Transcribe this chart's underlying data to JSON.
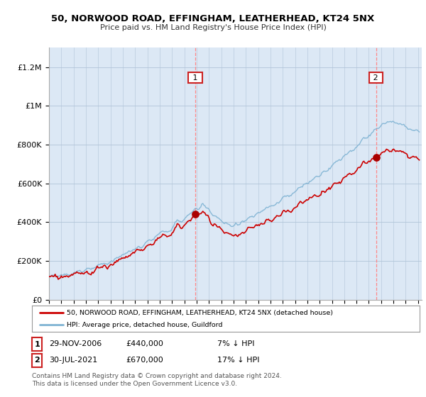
{
  "title1": "50, NORWOOD ROAD, EFFINGHAM, LEATHERHEAD, KT24 5NX",
  "title2": "Price paid vs. HM Land Registry's House Price Index (HPI)",
  "ylabel_ticks": [
    "£0",
    "£200K",
    "£400K",
    "£600K",
    "£800K",
    "£1M",
    "£1.2M"
  ],
  "ytick_values": [
    0,
    200000,
    400000,
    600000,
    800000,
    1000000,
    1200000
  ],
  "ylim": [
    0,
    1300000
  ],
  "sale1_price": 440000,
  "sale1_year": 2006.9,
  "sale1_date": "29-NOV-2006",
  "sale1_note": "7% ↓ HPI",
  "sale2_price": 670000,
  "sale2_year": 2021.58,
  "sale2_date": "30-JUL-2021",
  "sale2_note": "17% ↓ HPI",
  "legend_label_red": "50, NORWOOD ROAD, EFFINGHAM, LEATHERHEAD, KT24 5NX (detached house)",
  "legend_label_blue": "HPI: Average price, detached house, Guildford",
  "footer": "Contains HM Land Registry data © Crown copyright and database right 2024.\nThis data is licensed under the Open Government Licence v3.0.",
  "plot_bg_color": "#dce8f5",
  "line_red": "#cc0000",
  "line_blue": "#7fb3d3",
  "vline_color": "#ff8888",
  "dot_color_red": "#aa0000",
  "box_color": "#cc2222",
  "grid_color": "#b0c4d8"
}
